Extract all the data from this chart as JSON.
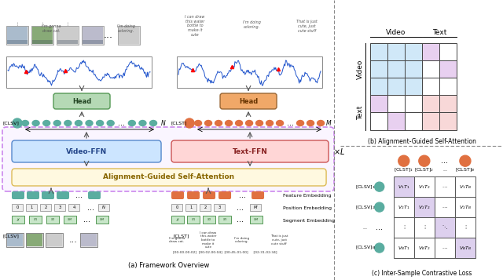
{
  "fig_width": 6.4,
  "fig_height": 3.57,
  "bg_color": "#ffffff",
  "title_a": "(a) Framework Overview",
  "title_b": "(b) Alignment-Guided Self-Attention",
  "title_c": "(c) Inter-Sample Contrastive Loss",
  "video_ffn_color": "#cce5ff",
  "text_ffn_color": "#ffd6d6",
  "alignment_color": "#fff9e0",
  "head_video_color": "#b5d9b5",
  "head_text_color": "#f0a868",
  "clsv_color": "#5aada0",
  "clst_color": "#e07040",
  "video_token_color": "#5aada0",
  "text_token_color": "#e07040",
  "seg_embed_color": "#c8e6c9",
  "pos_embed_color": "#e8e8e8",
  "feat_embed_video_color": "#5aada0",
  "feat_embed_text_color": "#e07040",
  "grid_vv_color": "#d0e8f8",
  "grid_tt_color": "#f8d8d8",
  "grid_vt_color": "#e8d0f0",
  "grid_white": "#ffffff",
  "contrastive_diag_color": "#ddd0ee",
  "outer_box_color": "#cc88ee",
  "outer_box_fill": "#faf5ff",
  "separator_color": "#888888"
}
